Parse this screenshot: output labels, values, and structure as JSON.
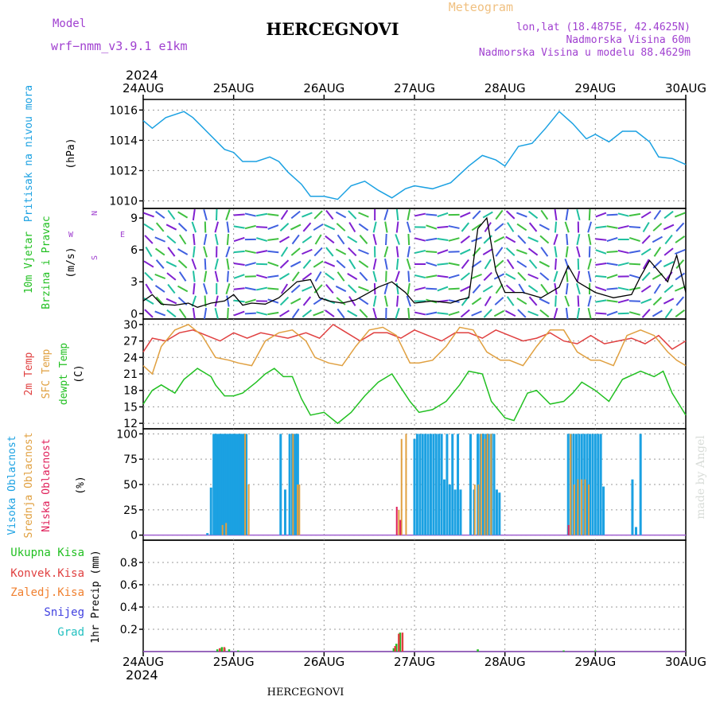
{
  "header": {
    "model_label": "Model",
    "model_name": "wrf−nmm_v3.9.1  e1km",
    "city": "HERCEGNOVI",
    "meteogram": "Meteogram",
    "lonlat": "lon,lat (18.4875E, 42.4625N)",
    "elevation": "Nadmorska Visina 60m",
    "model_elevation": "Nadmorska Visina u modelu 88.4629m",
    "year": "2024",
    "footer_city": "HERCEGNOVI",
    "credit": "made by Angel"
  },
  "colors": {
    "pressure": "#1ba1e2",
    "wind_label": "#22c022",
    "t2m": "#e04040",
    "sfc": "#e0a040",
    "dew": "#22c022",
    "high_cloud": "#1ba1e2",
    "mid_cloud": "#e0a040",
    "low_cloud": "#e0205a",
    "precip_total": "#22c022",
    "precip_conv": "#e04040",
    "precip_frozen": "#f08030",
    "snow": "#4040e0",
    "hail": "#22c0c0",
    "header_purple": "#a040d0",
    "header_gold": "#f0c080",
    "wind_arrows": [
      "#8020d0",
      "#4060e0",
      "#20a0e0",
      "#20c0a0",
      "#40c040",
      "#c0c040"
    ]
  },
  "chart_data": [
    {
      "type": "line",
      "panel": "pressure",
      "ylabel": [
        "Pritisak na nivou mora",
        "(hPa)"
      ],
      "ylim": [
        1009.5,
        1016.7
      ],
      "yticks": [
        1010,
        1012,
        1014,
        1016
      ],
      "x_start": "2024-08-24",
      "x_end": "2024-08-30",
      "x_ticks": [
        "24AUG",
        "25AUG",
        "26AUG",
        "27AUG",
        "28AUG",
        "29AUG",
        "30AUG"
      ],
      "grid": true,
      "series": [
        {
          "key": "pressure",
          "day": [
            0,
            0.1,
            0.25,
            0.45,
            0.55,
            0.7,
            0.9,
            1.0,
            1.1,
            1.25,
            1.4,
            1.5,
            1.6,
            1.75,
            1.85,
            2.0,
            2.15,
            2.3,
            2.45,
            2.6,
            2.75,
            2.9,
            3.0,
            3.2,
            3.4,
            3.6,
            3.75,
            3.9,
            4.0,
            4.15,
            4.3,
            4.45,
            4.6,
            4.75,
            4.9,
            5.0,
            5.15,
            5.3,
            5.45,
            5.6,
            5.7,
            5.85,
            6.0
          ],
          "values": [
            1015.3,
            1014.8,
            1015.5,
            1015.9,
            1015.5,
            1014.6,
            1013.4,
            1013.2,
            1012.6,
            1012.6,
            1012.9,
            1012.6,
            1011.9,
            1011.1,
            1010.3,
            1010.3,
            1010.1,
            1011.0,
            1011.3,
            1010.7,
            1010.2,
            1010.8,
            1011.0,
            1010.8,
            1011.2,
            1012.3,
            1013.0,
            1012.7,
            1012.3,
            1013.6,
            1013.8,
            1014.8,
            1015.9,
            1015.1,
            1014.1,
            1014.4,
            1013.9,
            1014.6,
            1014.6,
            1013.9,
            1012.9,
            1012.8,
            1012.4
          ]
        }
      ]
    },
    {
      "type": "barbs",
      "panel": "wind",
      "ylabel": [
        "10m Vjetar",
        "Brzina i Pravac",
        "(m/s)"
      ],
      "compass": [
        "N",
        "W",
        "E",
        "S"
      ],
      "ylim": [
        -0.5,
        9.9
      ],
      "yticks": [
        0,
        3,
        6,
        9
      ],
      "grid": false,
      "speed": {
        "day": [
          0,
          0.1,
          0.2,
          0.35,
          0.5,
          0.6,
          0.75,
          0.9,
          1.0,
          1.1,
          1.2,
          1.35,
          1.5,
          1.7,
          1.85,
          1.95,
          2.05,
          2.2,
          2.35,
          2.5,
          2.6,
          2.75,
          2.9,
          3.0,
          3.2,
          3.4,
          3.5,
          3.6,
          3.7,
          3.8,
          3.9,
          4.0,
          4.2,
          4.4,
          4.6,
          4.7,
          4.8,
          5.0,
          5.2,
          5.4,
          5.5,
          5.6,
          5.7,
          5.8,
          5.9,
          6.0
        ],
        "values": [
          1.2,
          1.8,
          0.9,
          0.8,
          1.0,
          0.6,
          1.0,
          1.2,
          1.8,
          0.8,
          1.0,
          0.9,
          1.5,
          3.0,
          3.2,
          1.5,
          1.2,
          1.0,
          1.3,
          2.0,
          2.5,
          3.0,
          2.0,
          1.0,
          1.2,
          1.0,
          1.3,
          1.5,
          8.0,
          9.0,
          4.0,
          2.0,
          2.0,
          1.5,
          2.5,
          4.5,
          3.0,
          2.0,
          1.5,
          1.8,
          3.5,
          5.0,
          4.0,
          3.0,
          5.5,
          2.0
        ]
      }
    },
    {
      "type": "line",
      "panel": "temperature",
      "ylabel": [
        "2m Temp",
        "SFC Temp",
        "dewpt Temp",
        "(C)"
      ],
      "ylim": [
        11,
        31
      ],
      "yticks": [
        12,
        15,
        18,
        21,
        24,
        27,
        30
      ],
      "grid": true,
      "series": [
        {
          "name": "2m Temp",
          "key": "t2m",
          "day": [
            0,
            0.1,
            0.25,
            0.4,
            0.55,
            0.7,
            0.85,
            1.0,
            1.15,
            1.3,
            1.45,
            1.6,
            1.8,
            1.95,
            2.1,
            2.2,
            2.4,
            2.55,
            2.7,
            2.85,
            3.0,
            3.15,
            3.3,
            3.45,
            3.6,
            3.75,
            3.9,
            4.05,
            4.2,
            4.35,
            4.5,
            4.65,
            4.8,
            4.95,
            5.1,
            5.25,
            5.4,
            5.55,
            5.7,
            5.85,
            6.0
          ],
          "values": [
            25,
            27.5,
            27,
            28.5,
            29,
            28,
            27,
            28.5,
            27.5,
            28.5,
            28,
            27.5,
            28.5,
            27.5,
            30,
            29,
            27,
            28.5,
            28.5,
            27.5,
            29,
            28,
            27,
            28.5,
            28.5,
            27.5,
            29,
            28,
            27,
            27.5,
            28.5,
            27,
            26.5,
            28,
            26.5,
            27,
            27.5,
            26.5,
            28,
            25.5,
            27
          ]
        },
        {
          "name": "SFC Temp",
          "key": "sfc",
          "day": [
            0,
            0.1,
            0.2,
            0.35,
            0.5,
            0.65,
            0.8,
            0.95,
            1.05,
            1.2,
            1.35,
            1.5,
            1.65,
            1.8,
            1.9,
            2.05,
            2.2,
            2.35,
            2.5,
            2.65,
            2.8,
            2.95,
            3.05,
            3.2,
            3.35,
            3.5,
            3.65,
            3.8,
            3.95,
            4.05,
            4.2,
            4.35,
            4.5,
            4.65,
            4.8,
            4.95,
            5.05,
            5.2,
            5.35,
            5.5,
            5.65,
            5.8,
            5.9,
            6.0
          ],
          "values": [
            22.5,
            21,
            26,
            29,
            30,
            28,
            24,
            23.5,
            23,
            22.5,
            27,
            28.5,
            29,
            27,
            24,
            23,
            22.5,
            26,
            29,
            29.5,
            28,
            23,
            23,
            23.5,
            26,
            29.5,
            29,
            25,
            23.5,
            23.5,
            22.5,
            26,
            29,
            29,
            25,
            23.5,
            23.5,
            22.5,
            28,
            29,
            28,
            25,
            23.5,
            22.5
          ]
        },
        {
          "name": "dewpt Temp",
          "key": "dew",
          "day": [
            0,
            0.1,
            0.2,
            0.35,
            0.45,
            0.6,
            0.75,
            0.8,
            0.9,
            1.0,
            1.1,
            1.25,
            1.35,
            1.45,
            1.55,
            1.65,
            1.75,
            1.85,
            2.0,
            2.15,
            2.3,
            2.45,
            2.6,
            2.75,
            2.85,
            2.95,
            3.05,
            3.2,
            3.35,
            3.5,
            3.6,
            3.75,
            3.85,
            4.0,
            4.1,
            4.25,
            4.35,
            4.5,
            4.65,
            4.75,
            4.85,
            5.0,
            5.15,
            5.3,
            5.5,
            5.65,
            5.75,
            5.85,
            6.0
          ],
          "values": [
            15.5,
            18,
            19,
            17.5,
            20,
            22,
            20.5,
            19,
            17,
            17,
            17.5,
            19.5,
            21,
            22,
            20.5,
            20.5,
            16.5,
            13.5,
            14,
            12,
            14,
            17,
            19.5,
            21,
            18.5,
            16,
            14,
            14.5,
            16,
            19,
            21.5,
            21,
            16,
            13,
            12.5,
            17.5,
            18,
            15.5,
            16,
            17.5,
            19.5,
            18,
            16,
            20,
            21.5,
            20.5,
            21.5,
            17.5,
            13.5
          ]
        }
      ]
    },
    {
      "type": "bar",
      "panel": "cloud",
      "ylabel": [
        "Visoka Oblacnost",
        "Srednja Oblacnost",
        "Niska Oblacnost",
        "(%)"
      ],
      "ylim": [
        -5,
        105
      ],
      "yticks": [
        0,
        25,
        50,
        75,
        100
      ],
      "grid": true,
      "series": [
        {
          "name": "Visoka Oblacnost",
          "key": "high_cloud",
          "day": [
            0.71,
            0.75,
            0.78,
            0.8,
            0.82,
            0.84,
            0.86,
            0.88,
            0.9,
            0.92,
            0.94,
            0.96,
            0.98,
            1.0,
            1.02,
            1.04,
            1.06,
            1.08,
            1.1,
            1.12,
            1.14,
            1.52,
            1.57,
            1.62,
            1.65,
            1.67,
            1.69,
            1.71,
            3.0,
            3.03,
            3.06,
            3.09,
            3.12,
            3.15,
            3.18,
            3.21,
            3.24,
            3.27,
            3.3,
            3.33,
            3.36,
            3.39,
            3.42,
            3.45,
            3.48,
            3.51,
            3.62,
            3.66,
            3.7,
            3.73,
            3.76,
            3.79,
            3.82,
            3.85,
            3.88,
            3.91,
            3.94,
            4.7,
            4.73,
            4.76,
            4.79,
            4.82,
            4.85,
            4.88,
            4.91,
            4.94,
            4.97,
            5.0,
            5.03,
            5.06,
            5.09,
            5.41,
            5.45,
            5.5
          ],
          "values": [
            2,
            47,
            100,
            100,
            100,
            100,
            100,
            100,
            100,
            100,
            100,
            100,
            100,
            100,
            100,
            100,
            100,
            100,
            100,
            100,
            100,
            100,
            45,
            100,
            100,
            100,
            100,
            100,
            95,
            100,
            100,
            100,
            100,
            100,
            100,
            100,
            100,
            100,
            100,
            55,
            100,
            50,
            100,
            45,
            100,
            45,
            100,
            45,
            100,
            100,
            100,
            100,
            100,
            100,
            100,
            45,
            42,
            100,
            100,
            100,
            100,
            100,
            100,
            100,
            100,
            100,
            100,
            100,
            100,
            100,
            48,
            55,
            8,
            100
          ]
        },
        {
          "name": "Srednja Oblacnost",
          "key": "mid_cloud",
          "day": [
            0.87,
            0.91,
            1.12,
            1.16,
            1.65,
            1.7,
            1.72,
            2.82,
            2.85,
            2.9,
            3.66,
            3.7,
            3.73,
            3.77,
            3.8,
            3.84,
            4.72,
            4.76,
            4.8,
            4.84,
            4.88,
            4.92
          ],
          "values": [
            10,
            12,
            100,
            50,
            100,
            50,
            50,
            25,
            95,
            100,
            50,
            50,
            100,
            95,
            100,
            100,
            100,
            50,
            55,
            55,
            55,
            50
          ]
        },
        {
          "name": "Niska Oblacnost",
          "key": "low_cloud",
          "day": [
            2.79,
            2.83,
            4.69
          ],
          "values": [
            28,
            15,
            10
          ]
        }
      ]
    },
    {
      "type": "bar",
      "panel": "precip",
      "ylabel": [
        "1hr Precip (mm)"
      ],
      "legend": [
        "Ukupna Kisa",
        "Konvek.Kisa",
        "Zaledj.Kisa",
        "Snijeg",
        "Grad"
      ],
      "ylim": [
        0,
        1.0
      ],
      "yticks": [
        0.2,
        0.4,
        0.6,
        0.8
      ],
      "grid": true,
      "series": [
        {
          "name": "Ukupna Kisa",
          "key": "precip_total",
          "day": [
            0.82,
            0.87,
            0.9,
            0.95,
            1.05,
            2.77,
            2.8,
            2.84,
            3.7,
            4.65,
            5.0
          ],
          "values": [
            0.02,
            0.04,
            0.03,
            0.02,
            0.01,
            0.03,
            0.07,
            0.17,
            0.02,
            0.01,
            0.01
          ]
        },
        {
          "name": "Konvek.Kisa",
          "key": "precip_conv",
          "day": [
            0.84,
            0.89,
            2.78,
            2.82,
            2.86
          ],
          "values": [
            0.03,
            0.04,
            0.05,
            0.16,
            0.17
          ]
        }
      ]
    }
  ]
}
